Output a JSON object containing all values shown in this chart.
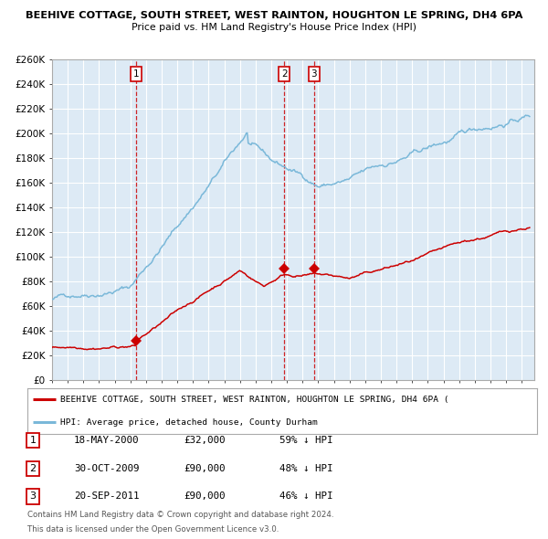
{
  "title1": "BEEHIVE COTTAGE, SOUTH STREET, WEST RAINTON, HOUGHTON LE SPRING, DH4 6PA",
  "title2": "Price paid vs. HM Land Registry's House Price Index (HPI)",
  "ylim": [
    0,
    260000
  ],
  "yticks": [
    0,
    20000,
    40000,
    60000,
    80000,
    100000,
    120000,
    140000,
    160000,
    180000,
    200000,
    220000,
    240000,
    260000
  ],
  "ytick_labels": [
    "£0",
    "£20K",
    "£40K",
    "£60K",
    "£80K",
    "£100K",
    "£120K",
    "£140K",
    "£160K",
    "£180K",
    "£200K",
    "£220K",
    "£240K",
    "£260K"
  ],
  "hpi_color": "#7ab8d9",
  "price_color": "#cc0000",
  "bg_color": "#ddeaf5",
  "grid_color": "#ffffff",
  "vline_color": "#cc0000",
  "sale_dates": [
    2000.37,
    2009.83,
    2011.72
  ],
  "sale_prices": [
    32000,
    90000,
    90000
  ],
  "sale_labels": [
    "1",
    "2",
    "3"
  ],
  "legend_red_label": "BEEHIVE COTTAGE, SOUTH STREET, WEST RAINTON, HOUGHTON LE SPRING, DH4 6PA (",
  "legend_blue_label": "HPI: Average price, detached house, County Durham",
  "table_rows": [
    [
      "1",
      "18-MAY-2000",
      "£32,000",
      "59% ↓ HPI"
    ],
    [
      "2",
      "30-OCT-2009",
      "£90,000",
      "48% ↓ HPI"
    ],
    [
      "3",
      "20-SEP-2011",
      "£90,000",
      "46% ↓ HPI"
    ]
  ],
  "footnote1": "Contains HM Land Registry data © Crown copyright and database right 2024.",
  "footnote2": "This data is licensed under the Open Government Licence v3.0."
}
